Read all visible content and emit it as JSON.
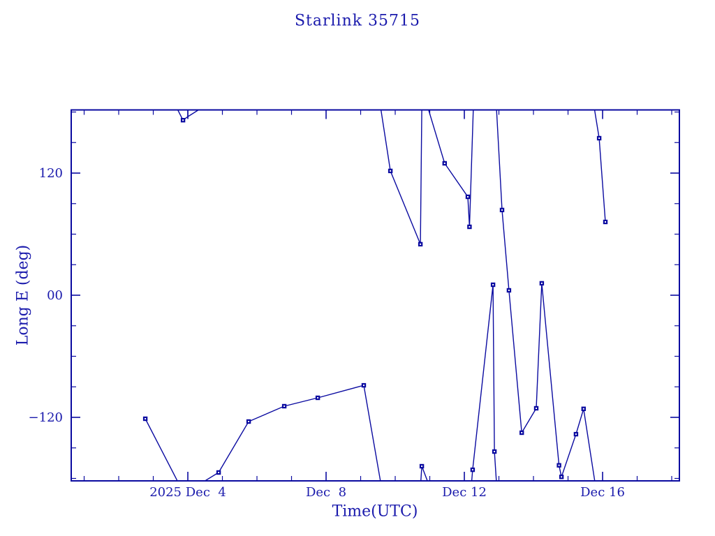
{
  "title": "Starlink 35715",
  "chart_data": {
    "type": "line",
    "title": "Starlink 35715",
    "xlabel": "Time(UTC)",
    "ylabel": "Long E (deg)",
    "x_unit": "day of December 2025, UTC",
    "y_unit": "degrees East longitude",
    "xlim": [
      0.626,
      18.222
    ],
    "ylim": [
      -182.4,
      182.06
    ],
    "grid": false,
    "legend": "none",
    "line_color": "#0a0aa0",
    "text_color": "#1a1aac",
    "background_color": "#ffffff",
    "x_major_ticks": [
      {
        "day": 4,
        "label": "2025 Dec  4"
      },
      {
        "day": 8,
        "label": "Dec  8"
      },
      {
        "day": 12,
        "label": "Dec 12"
      },
      {
        "day": 16,
        "label": "Dec 16"
      }
    ],
    "x_minor_tick_days": [
      1,
      2,
      3,
      5,
      6,
      7,
      9,
      10,
      11,
      13,
      14,
      15,
      17,
      18
    ],
    "y_major_ticks": [
      {
        "deg": 120,
        "label": "120"
      },
      {
        "deg": 0,
        "label": "00"
      },
      {
        "deg": -120,
        "label": "−120"
      }
    ],
    "y_minor_tick_degs": [
      180,
      150,
      90,
      60,
      30,
      -30,
      -60,
      -90,
      -150,
      -180
    ],
    "series_name": "Long E (deg)",
    "segments": [
      {
        "points": [
          [
            3.68,
            184
          ],
          [
            3.86,
            172
          ],
          [
            4.0,
            175.5
          ],
          [
            4.4,
            184
          ]
        ]
      },
      {
        "points": [
          [
            4.0,
            184
          ],
          [
            4.0,
            175.5
          ]
        ]
      },
      {
        "points": [
          [
            2.77,
            -121.4
          ],
          [
            3.72,
            -184
          ]
        ]
      },
      {
        "points": [
          [
            4.42,
            -184
          ],
          [
            4.89,
            -174.2
          ],
          [
            5.76,
            -124.1
          ],
          [
            6.79,
            -109.0
          ],
          [
            7.76,
            -100.8
          ],
          [
            9.09,
            -88.5
          ],
          [
            9.58,
            -184
          ]
        ]
      },
      {
        "points": [
          [
            9.58,
            184
          ],
          [
            9.86,
            122.1
          ],
          [
            10.73,
            50.1
          ],
          [
            10.77,
            184
          ]
        ]
      },
      {
        "points": [
          [
            10.74,
            -184
          ],
          [
            10.77,
            -168.0
          ],
          [
            10.95,
            -184
          ]
        ]
      },
      {
        "points": [
          [
            10.95,
            184
          ],
          [
            11.43,
            129.6
          ],
          [
            12.1,
            96.7
          ],
          [
            12.15,
            67.2
          ],
          [
            12.26,
            184
          ]
        ]
      },
      {
        "points": [
          [
            12.21,
            -184
          ],
          [
            12.24,
            -171.5
          ],
          [
            12.83,
            10.3
          ],
          [
            12.87,
            -153.6
          ],
          [
            12.93,
            -184
          ]
        ]
      },
      {
        "points": [
          [
            12.93,
            184
          ],
          [
            13.09,
            83.7
          ],
          [
            13.29,
            4.8
          ],
          [
            13.66,
            -135.1
          ],
          [
            14.08,
            -111.1
          ],
          [
            14.24,
            11.7
          ],
          [
            14.74,
            -167.1
          ],
          [
            14.81,
            -178.5
          ],
          [
            15.23,
            -136.5
          ],
          [
            15.45,
            -111.6
          ],
          [
            15.78,
            -184
          ]
        ]
      },
      {
        "points": [
          [
            15.76,
            184
          ],
          [
            15.9,
            154.3
          ],
          [
            16.08,
            72.0
          ]
        ]
      }
    ],
    "markers": [
      [
        2.77,
        -121.4
      ],
      [
        3.86,
        172.0
      ],
      [
        4.89,
        -174.2
      ],
      [
        5.76,
        -124.1
      ],
      [
        6.79,
        -109.0
      ],
      [
        7.76,
        -100.8
      ],
      [
        9.09,
        -88.5
      ],
      [
        9.86,
        122.1
      ],
      [
        10.73,
        50.1
      ],
      [
        10.77,
        -168.0
      ],
      [
        11.43,
        129.6
      ],
      [
        12.1,
        96.7
      ],
      [
        12.15,
        67.2
      ],
      [
        12.24,
        -171.5
      ],
      [
        12.83,
        10.3
      ],
      [
        12.87,
        -153.6
      ],
      [
        13.09,
        83.7
      ],
      [
        13.29,
        4.8
      ],
      [
        13.66,
        -135.1
      ],
      [
        14.08,
        -111.1
      ],
      [
        14.24,
        11.7
      ],
      [
        14.74,
        -167.1
      ],
      [
        14.81,
        -178.5
      ],
      [
        15.23,
        -136.5
      ],
      [
        15.45,
        -111.6
      ],
      [
        15.9,
        154.3
      ],
      [
        16.08,
        72.0
      ]
    ]
  }
}
